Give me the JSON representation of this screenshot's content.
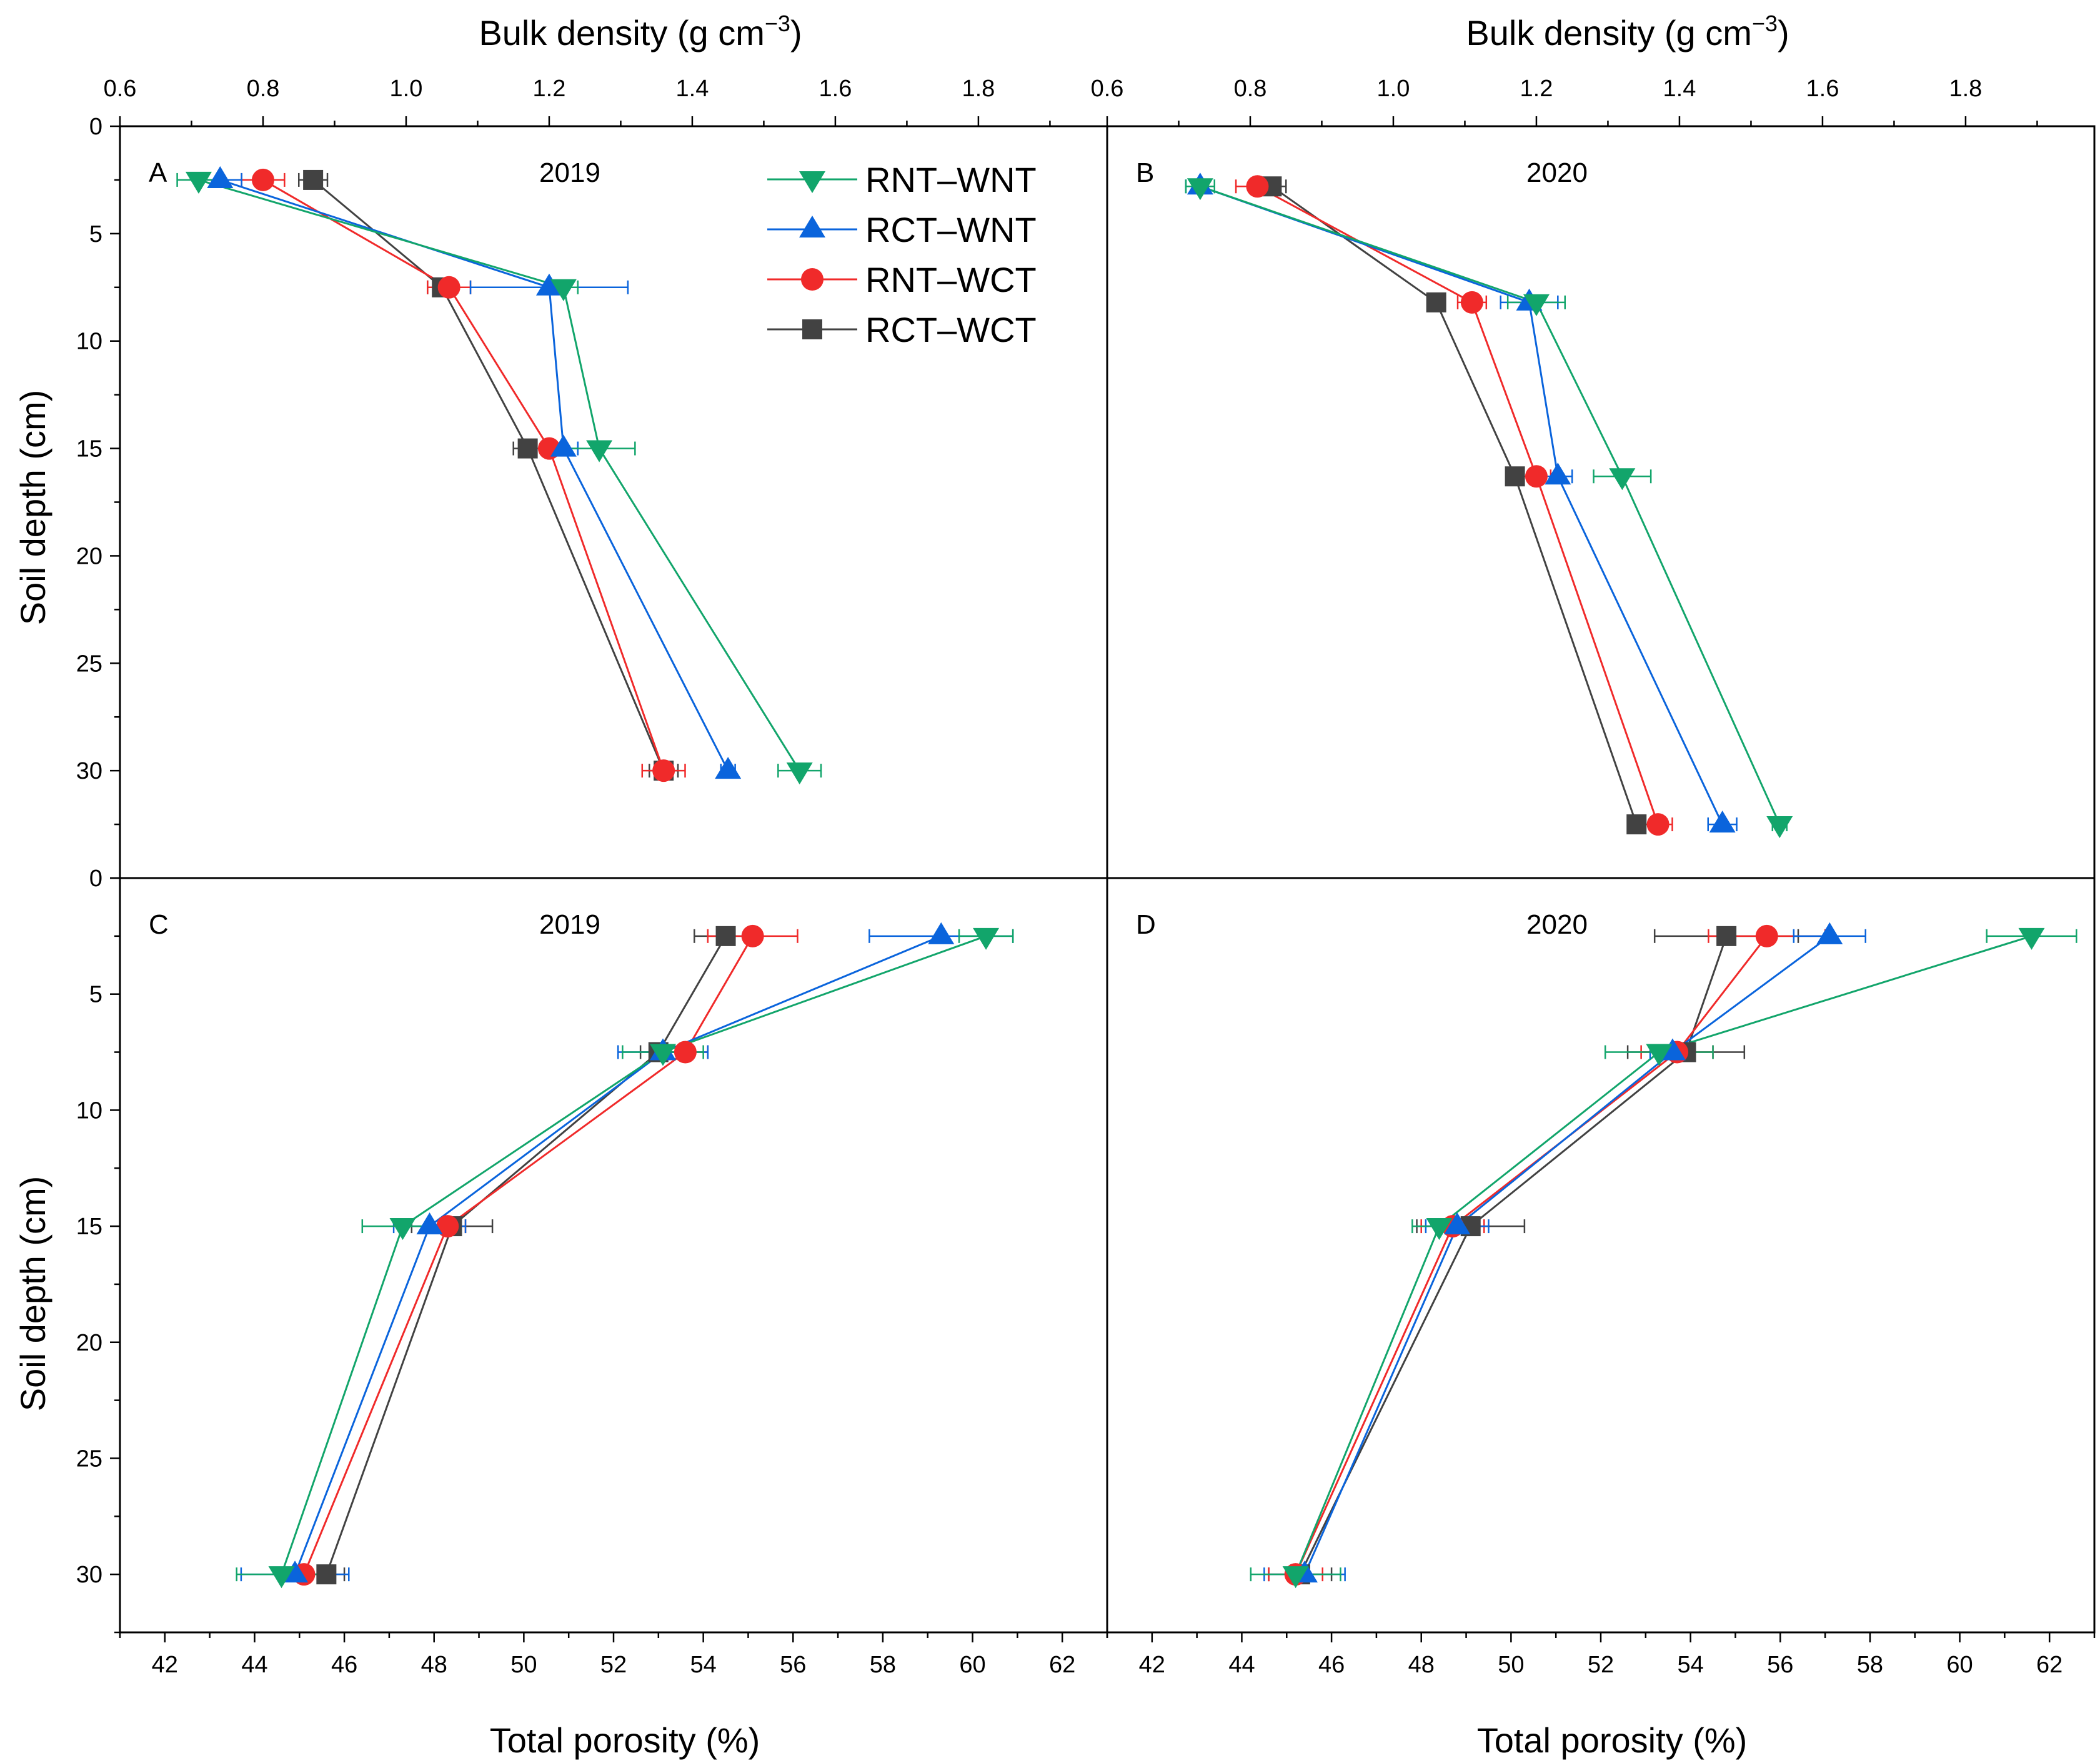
{
  "colors": {
    "RNT-WNT": "#12a56b",
    "RCT-WNT": "#0a64dc",
    "RNT-WCT": "#f02a2a",
    "RCT-WCT": "#424242"
  },
  "markers": {
    "RNT-WNT": "triangle-down",
    "RCT-WNT": "triangle-up",
    "RNT-WCT": "circle",
    "RCT-WCT": "square"
  },
  "legend": [
    "RNT–WNT",
    "RCT–WNT",
    "RNT–WCT",
    "RCT–WCT"
  ],
  "axes": {
    "top_title_main": "Bulk density (g cm",
    "top_title_sup": "−3",
    "top_title_close": ")",
    "bottom_title": "Total porosity (%)",
    "left_title": "Soil depth (cm)",
    "bd_ticks": [
      "0.6",
      "0.8",
      "1.0",
      "1.2",
      "1.4",
      "1.6",
      "1.8"
    ],
    "tp_ticks": [
      "42",
      "44",
      "46",
      "48",
      "50",
      "52",
      "54",
      "56",
      "58",
      "60",
      "62"
    ],
    "depth_ticks_top": [
      "0",
      "5",
      "10",
      "15",
      "20",
      "25",
      "30"
    ],
    "depth_ticks_bottom": [
      "0",
      "5",
      "10",
      "15",
      "20",
      "25",
      "30"
    ]
  },
  "chart_data": [
    {
      "type": "line",
      "panel": "A",
      "title": "2019",
      "xlabel": "Bulk density (g cm−3)",
      "ylabel": "Soil depth (cm)",
      "xlim": [
        0.6,
        1.98
      ],
      "ylim": [
        35,
        0
      ],
      "series": [
        {
          "name": "RNT–WNT",
          "x": [
            0.71,
            1.22,
            1.27,
            1.55
          ],
          "y": [
            2.5,
            7.5,
            15,
            30
          ],
          "err": [
            0.03,
            0.02,
            0.05,
            0.03
          ]
        },
        {
          "name": "RCT–WNT",
          "x": [
            0.74,
            1.2,
            1.22,
            1.45
          ],
          "y": [
            2.5,
            7.5,
            15,
            30
          ],
          "err": [
            0.03,
            0.11,
            0.02,
            0.01
          ]
        },
        {
          "name": "RNT–WCT",
          "x": [
            0.8,
            1.06,
            1.2,
            1.36
          ],
          "y": [
            2.5,
            7.5,
            15,
            30
          ],
          "err": [
            0.03,
            0.03,
            0.02,
            0.03
          ]
        },
        {
          "name": "RCT–WCT",
          "x": [
            0.87,
            1.05,
            1.17,
            1.36
          ],
          "y": [
            2.5,
            7.5,
            15,
            30
          ],
          "err": [
            0.02,
            0.02,
            0.02,
            0.02
          ]
        }
      ]
    },
    {
      "type": "line",
      "panel": "B",
      "title": "2020",
      "xlabel": "Bulk density (g cm−3)",
      "ylabel": "Soil depth (cm)",
      "xlim": [
        0.6,
        1.98
      ],
      "ylim": [
        35,
        0
      ],
      "series": [
        {
          "name": "RNT–WNT",
          "x": [
            0.73,
            1.2,
            1.32,
            1.54
          ],
          "y": [
            2.8,
            8.2,
            16.3,
            32.5
          ],
          "err": [
            0.02,
            0.04,
            0.04,
            0.01
          ]
        },
        {
          "name": "RCT–WNT",
          "x": [
            0.73,
            1.19,
            1.23,
            1.46
          ],
          "y": [
            2.8,
            8.2,
            16.3,
            32.5
          ],
          "err": [
            0.02,
            0.04,
            0.02,
            0.02
          ]
        },
        {
          "name": "RNT–WCT",
          "x": [
            0.81,
            1.11,
            1.2,
            1.37
          ],
          "y": [
            2.8,
            8.2,
            16.3,
            32.5
          ],
          "err": [
            0.03,
            0.02,
            0.02,
            0.02
          ]
        },
        {
          "name": "RCT–WCT",
          "x": [
            0.83,
            1.06,
            1.17,
            1.34
          ],
          "y": [
            2.8,
            8.2,
            16.3,
            32.5
          ],
          "err": [
            0.02,
            0.01,
            0.01,
            0.01
          ]
        }
      ]
    },
    {
      "type": "line",
      "panel": "C",
      "title": "2019",
      "xlabel": "Total porosity (%)",
      "ylabel": "Soil depth (cm)",
      "xlim": [
        41,
        63
      ],
      "ylim": [
        32.5,
        0
      ],
      "series": [
        {
          "name": "RNT–WNT",
          "x": [
            60.3,
            53.1,
            47.3,
            44.6
          ],
          "y": [
            2.5,
            7.5,
            15,
            30
          ],
          "err": [
            0.6,
            0.9,
            0.9,
            1.0
          ]
        },
        {
          "name": "RCT–WNT",
          "x": [
            59.3,
            53.1,
            47.9,
            44.9
          ],
          "y": [
            2.5,
            7.5,
            15,
            30
          ],
          "err": [
            1.6,
            1.0,
            0.8,
            1.2
          ]
        },
        {
          "name": "RNT–WCT",
          "x": [
            55.1,
            53.6,
            48.3,
            45.1
          ],
          "y": [
            2.5,
            7.5,
            15,
            30
          ],
          "err": [
            1.0,
            0.5,
            0.4,
            0.4
          ]
        },
        {
          "name": "RCT–WCT",
          "x": [
            54.5,
            53.0,
            48.4,
            45.6
          ],
          "y": [
            2.5,
            7.5,
            15,
            30
          ],
          "err": [
            0.7,
            0.4,
            0.9,
            0.4
          ]
        }
      ]
    },
    {
      "type": "line",
      "panel": "D",
      "title": "2020",
      "xlabel": "Total porosity (%)",
      "ylabel": "Soil depth (cm)",
      "xlim": [
        41,
        63
      ],
      "ylim": [
        32.5,
        0
      ],
      "series": [
        {
          "name": "RNT–WNT",
          "x": [
            61.6,
            53.3,
            48.4,
            45.2
          ],
          "y": [
            2.5,
            7.5,
            15,
            30
          ],
          "err": [
            1.0,
            1.2,
            0.6,
            1.0
          ]
        },
        {
          "name": "RCT–WNT",
          "x": [
            57.1,
            53.6,
            48.8,
            45.4
          ],
          "y": [
            2.5,
            7.5,
            15,
            30
          ],
          "err": [
            0.8,
            0.5,
            0.7,
            0.9
          ]
        },
        {
          "name": "RNT–WCT",
          "x": [
            55.7,
            53.7,
            48.7,
            45.2
          ],
          "y": [
            2.5,
            7.5,
            15,
            30
          ],
          "err": [
            1.3,
            0.8,
            0.7,
            0.6
          ]
        },
        {
          "name": "RCT–WCT",
          "x": [
            54.8,
            53.9,
            49.1,
            45.3
          ],
          "y": [
            2.5,
            7.5,
            15,
            30
          ],
          "err": [
            1.6,
            1.3,
            1.2,
            0.7
          ]
        }
      ]
    }
  ]
}
